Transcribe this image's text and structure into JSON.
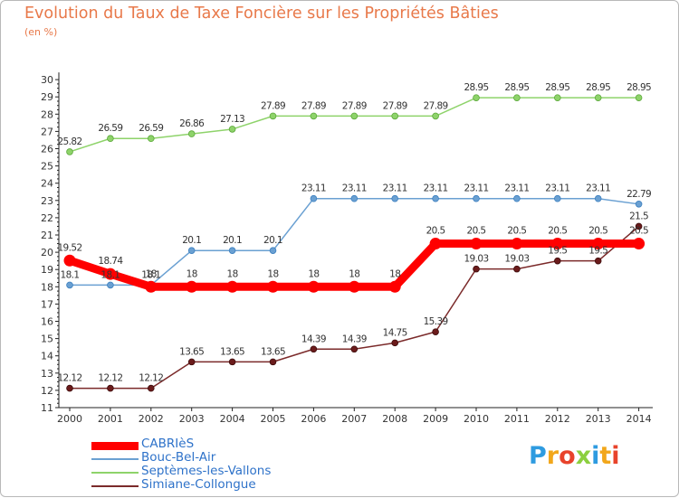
{
  "chart_data": {
    "type": "line",
    "title": "Evolution du Taux de Taxe Foncière sur les Propriétés Bâties",
    "subtitle": "(en %)",
    "xlabel": "",
    "ylabel": "",
    "x": [
      "2000",
      "2001",
      "2002",
      "2003",
      "2004",
      "2005",
      "2006",
      "2007",
      "2008",
      "2009",
      "2010",
      "2011",
      "2012",
      "2013",
      "2014"
    ],
    "ylim": [
      11,
      30
    ],
    "yticks": [
      "11",
      "12",
      "13",
      "14",
      "15",
      "16",
      "17",
      "18",
      "19",
      "20",
      "21",
      "22",
      "23",
      "24",
      "25",
      "26",
      "27",
      "28",
      "29",
      "30"
    ],
    "grid": false,
    "legend_position": "bottom-left",
    "series": [
      {
        "name": "CABRIèS",
        "color": "#ff0000",
        "values": [
          19.52,
          18.74,
          18,
          18,
          18,
          18,
          18,
          18,
          18,
          20.5,
          20.5,
          20.5,
          20.5,
          20.5,
          20.5
        ],
        "labels": [
          "19.52",
          "18.74",
          "18",
          "18",
          "18",
          "18",
          "18",
          "18",
          "18",
          "20.5",
          "20.5",
          "20.5",
          "20.5",
          "20.5",
          "20.5"
        ]
      },
      {
        "name": "Bouc-Bel-Air",
        "color": "#6aa0d2",
        "values": [
          18.1,
          18.1,
          18.1,
          20.1,
          20.1,
          20.1,
          23.11,
          23.11,
          23.11,
          23.11,
          23.11,
          23.11,
          23.11,
          23.11,
          22.79
        ],
        "labels": [
          "18.1",
          "18.1",
          "18.1",
          "20.1",
          "20.1",
          "20.1",
          "23.11",
          "23.11",
          "23.11",
          "23.11",
          "23.11",
          "23.11",
          "23.11",
          "23.11",
          "22.79"
        ]
      },
      {
        "name": "Septèmes-les-Vallons",
        "color": "#8ed36a",
        "values": [
          25.82,
          26.59,
          26.59,
          26.86,
          27.13,
          27.89,
          27.89,
          27.89,
          27.89,
          27.89,
          28.95,
          28.95,
          28.95,
          28.95,
          28.95
        ],
        "labels": [
          "25.82",
          "26.59",
          "26.59",
          "26.86",
          "27.13",
          "27.89",
          "27.89",
          "27.89",
          "27.89",
          "27.89",
          "28.95",
          "28.95",
          "28.95",
          "28.95",
          "28.95"
        ]
      },
      {
        "name": "Simiane-Collongue",
        "color": "#7b2a2a",
        "values": [
          12.12,
          12.12,
          12.12,
          13.65,
          13.65,
          13.65,
          14.39,
          14.39,
          14.75,
          15.39,
          19.03,
          19.03,
          19.5,
          19.5,
          21.5
        ],
        "labels": [
          "12.12",
          "12.12",
          "12.12",
          "13.65",
          "13.65",
          "13.65",
          "14.39",
          "14.39",
          "14.75",
          "15.39",
          "19.03",
          "19.03",
          "19.5",
          "19.5",
          "21.5"
        ]
      }
    ]
  },
  "logo": {
    "letters": [
      "P",
      "r",
      "o",
      "x",
      "i",
      "t",
      "i"
    ],
    "colors": [
      "#2e9be0",
      "#f2a71b",
      "#e8432b",
      "#8ccf3f",
      "#2e9be0",
      "#f2a71b",
      "#e8432b"
    ]
  }
}
